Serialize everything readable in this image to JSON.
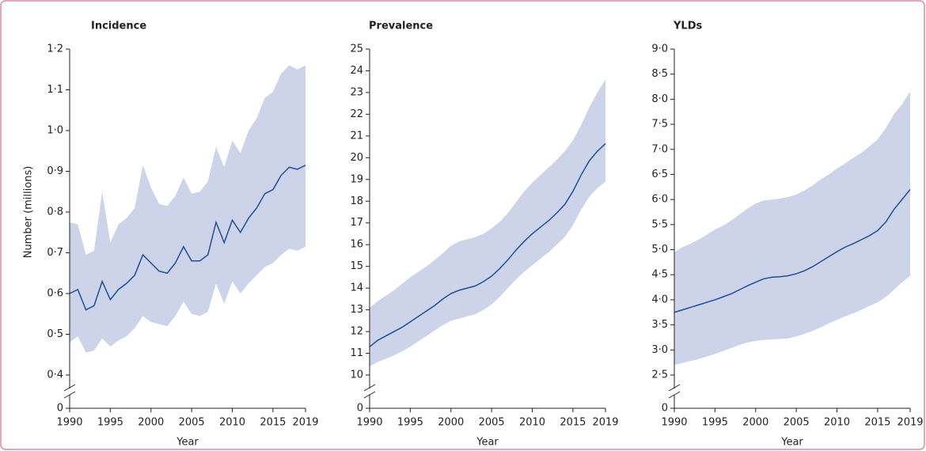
{
  "chart_data": [
    {
      "type": "line",
      "title": "Incidence",
      "xlabel": "Year",
      "ylabel": "Number (millions)",
      "x": [
        1990,
        1991,
        1992,
        1993,
        1994,
        1995,
        1996,
        1997,
        1998,
        1999,
        2000,
        2001,
        2002,
        2003,
        2004,
        2005,
        2006,
        2007,
        2008,
        2009,
        2010,
        2011,
        2012,
        2013,
        2014,
        2015,
        2016,
        2017,
        2018,
        2019
      ],
      "xlim": [
        1990,
        2019
      ],
      "xticks": [
        1990,
        1995,
        2000,
        2005,
        2010,
        2015,
        2019
      ],
      "ylim": [
        0.4,
        1.2
      ],
      "axis_break": true,
      "yticks": [
        0,
        {
          "value": 0.4,
          "label": "0·4"
        },
        {
          "value": 0.5,
          "label": "0·5"
        },
        {
          "value": 0.6,
          "label": "0·6"
        },
        {
          "value": 0.7,
          "label": "0·7"
        },
        {
          "value": 0.8,
          "label": "0·8"
        },
        {
          "value": 0.9,
          "label": "0·9"
        },
        {
          "value": 1.0,
          "label": "1·0"
        },
        {
          "value": 1.1,
          "label": "1·1"
        },
        {
          "value": 1.2,
          "label": "1·2"
        }
      ],
      "series": [
        {
          "color": "#1f4e9b",
          "band_color": "#cdd3e8",
          "values": [
            0.6,
            0.61,
            0.56,
            0.57,
            0.63,
            0.585,
            0.61,
            0.625,
            0.645,
            0.695,
            0.675,
            0.655,
            0.65,
            0.675,
            0.715,
            0.68,
            0.68,
            0.695,
            0.775,
            0.725,
            0.78,
            0.75,
            0.785,
            0.81,
            0.845,
            0.855,
            0.89,
            0.91,
            0.905,
            0.915
          ],
          "upper": [
            0.775,
            0.77,
            0.695,
            0.705,
            0.85,
            0.725,
            0.77,
            0.785,
            0.81,
            0.915,
            0.86,
            0.82,
            0.815,
            0.84,
            0.885,
            0.845,
            0.85,
            0.875,
            0.96,
            0.91,
            0.975,
            0.945,
            1.0,
            1.03,
            1.08,
            1.095,
            1.14,
            1.16,
            1.15,
            1.16
          ],
          "lower": [
            0.48,
            0.495,
            0.455,
            0.46,
            0.49,
            0.47,
            0.485,
            0.495,
            0.515,
            0.545,
            0.53,
            0.525,
            0.52,
            0.545,
            0.58,
            0.55,
            0.545,
            0.555,
            0.625,
            0.575,
            0.63,
            0.6,
            0.625,
            0.645,
            0.665,
            0.675,
            0.695,
            0.71,
            0.705,
            0.715
          ]
        }
      ]
    },
    {
      "type": "line",
      "title": "Prevalence",
      "xlabel": "Year",
      "x": [
        1990,
        1991,
        1992,
        1993,
        1994,
        1995,
        1996,
        1997,
        1998,
        1999,
        2000,
        2001,
        2002,
        2003,
        2004,
        2005,
        2006,
        2007,
        2008,
        2009,
        2010,
        2011,
        2012,
        2013,
        2014,
        2015,
        2016,
        2017,
        2018,
        2019
      ],
      "xlim": [
        1990,
        2019
      ],
      "xticks": [
        1990,
        1995,
        2000,
        2005,
        2010,
        2015,
        2019
      ],
      "ylim": [
        10,
        25
      ],
      "axis_break": true,
      "yticks": [
        0,
        10,
        11,
        12,
        13,
        14,
        15,
        16,
        17,
        18,
        19,
        20,
        21,
        22,
        23,
        24,
        25
      ],
      "series": [
        {
          "color": "#1f4e9b",
          "band_color": "#cdd3e8",
          "values": [
            11.3,
            11.6,
            11.8,
            12.0,
            12.2,
            12.45,
            12.7,
            12.95,
            13.2,
            13.5,
            13.75,
            13.9,
            14.0,
            14.1,
            14.3,
            14.55,
            14.9,
            15.3,
            15.75,
            16.15,
            16.5,
            16.8,
            17.1,
            17.45,
            17.85,
            18.45,
            19.2,
            19.85,
            20.3,
            20.65
          ],
          "upper": [
            13.1,
            13.4,
            13.65,
            13.9,
            14.2,
            14.5,
            14.75,
            15.0,
            15.3,
            15.6,
            15.95,
            16.15,
            16.25,
            16.35,
            16.5,
            16.75,
            17.05,
            17.45,
            17.95,
            18.45,
            18.85,
            19.2,
            19.55,
            19.9,
            20.3,
            20.8,
            21.5,
            22.3,
            23.0,
            23.6
          ],
          "lower": [
            10.4,
            10.6,
            10.75,
            10.9,
            11.1,
            11.3,
            11.55,
            11.8,
            12.05,
            12.3,
            12.5,
            12.6,
            12.7,
            12.8,
            13.0,
            13.25,
            13.6,
            14.0,
            14.4,
            14.75,
            15.05,
            15.35,
            15.65,
            16.0,
            16.35,
            16.9,
            17.6,
            18.2,
            18.6,
            18.9
          ]
        }
      ]
    },
    {
      "type": "line",
      "title": "YLDs",
      "xlabel": "Year",
      "x": [
        1990,
        1991,
        1992,
        1993,
        1994,
        1995,
        1996,
        1997,
        1998,
        1999,
        2000,
        2001,
        2002,
        2003,
        2004,
        2005,
        2006,
        2007,
        2008,
        2009,
        2010,
        2011,
        2012,
        2013,
        2014,
        2015,
        2016,
        2017,
        2018,
        2019
      ],
      "xlim": [
        1990,
        2019
      ],
      "xticks": [
        1990,
        1995,
        2000,
        2005,
        2010,
        2015,
        2019
      ],
      "ylim": [
        2.5,
        9.0
      ],
      "axis_break": true,
      "yticks": [
        0,
        {
          "value": 2.5,
          "label": "2·5"
        },
        {
          "value": 3.0,
          "label": "3·0"
        },
        {
          "value": 3.5,
          "label": "3·5"
        },
        {
          "value": 4.0,
          "label": "4·0"
        },
        {
          "value": 4.5,
          "label": "4·5"
        },
        {
          "value": 5.0,
          "label": "5·0"
        },
        {
          "value": 5.5,
          "label": "5·5"
        },
        {
          "value": 6.0,
          "label": "6·0"
        },
        {
          "value": 6.5,
          "label": "6·5"
        },
        {
          "value": 7.0,
          "label": "7·0"
        },
        {
          "value": 7.5,
          "label": "7·5"
        },
        {
          "value": 8.0,
          "label": "8·0"
        },
        {
          "value": 8.5,
          "label": "8·5"
        },
        {
          "value": 9.0,
          "label": "9·0"
        }
      ],
      "series": [
        {
          "color": "#1f4e9b",
          "band_color": "#cdd3e8",
          "values": [
            3.75,
            3.8,
            3.85,
            3.9,
            3.95,
            4.0,
            4.06,
            4.12,
            4.2,
            4.28,
            4.35,
            4.42,
            4.45,
            4.46,
            4.48,
            4.52,
            4.58,
            4.66,
            4.76,
            4.86,
            4.96,
            5.05,
            5.12,
            5.2,
            5.28,
            5.38,
            5.55,
            5.8,
            6.0,
            6.2
          ],
          "upper": [
            4.95,
            5.05,
            5.12,
            5.2,
            5.3,
            5.4,
            5.48,
            5.58,
            5.7,
            5.82,
            5.92,
            5.98,
            6.0,
            6.02,
            6.05,
            6.1,
            6.18,
            6.28,
            6.4,
            6.5,
            6.62,
            6.72,
            6.83,
            6.93,
            7.06,
            7.2,
            7.42,
            7.7,
            7.9,
            8.15
          ],
          "lower": [
            2.7,
            2.74,
            2.78,
            2.82,
            2.87,
            2.92,
            2.98,
            3.04,
            3.1,
            3.15,
            3.18,
            3.2,
            3.21,
            3.22,
            3.23,
            3.27,
            3.32,
            3.38,
            3.45,
            3.53,
            3.6,
            3.67,
            3.73,
            3.8,
            3.88,
            3.95,
            4.05,
            4.2,
            4.35,
            4.48
          ]
        }
      ]
    }
  ]
}
